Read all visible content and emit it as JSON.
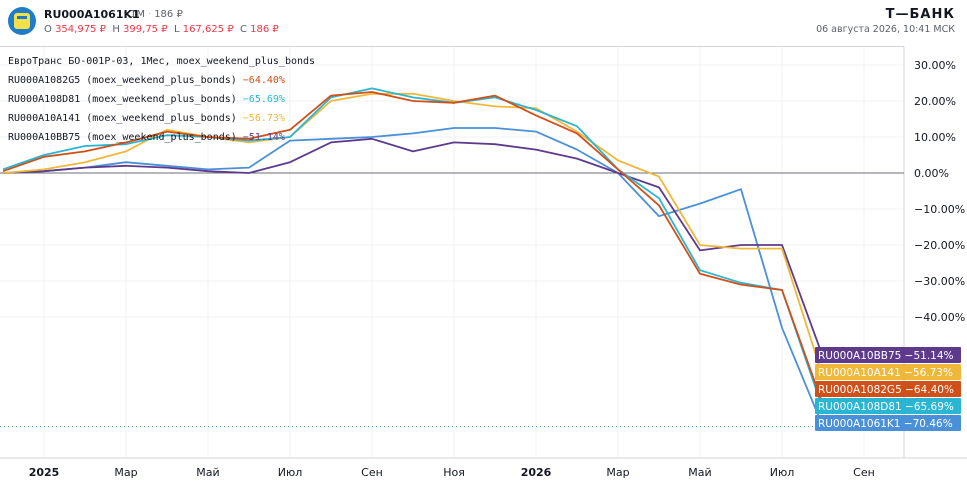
{
  "header": {
    "ticker": "RU000A1061K1",
    "interval": "1M",
    "count": "186 ₽",
    "ohlc": [
      {
        "key": "O",
        "value": "354,975 ₽"
      },
      {
        "key": "H",
        "value": "399,75 ₽"
      },
      {
        "key": "L",
        "value": "167,625 ₽"
      },
      {
        "key": "C",
        "value": "186 ₽"
      }
    ],
    "brand": "Т—БАНК",
    "datetime": "06 августа 2026, 10:41 МСК"
  },
  "legend": {
    "title": "ЕвроТранс БО-001Р-03, 1Мес, moex_weekend_plus_bonds"
  },
  "colors": {
    "RU000A1082G5": "#d0501a",
    "RU000A108D81": "#2ab5d3",
    "RU000A10A141": "#f0b83a",
    "RU000A10BB75": "#5e3a8c",
    "RU000A1061K1": "#4a90d9",
    "grid": "#eef0f3",
    "axis_text": "#131722",
    "zero_line": "#6b6f79"
  },
  "chart_data": {
    "type": "line",
    "x": [
      "2024-12",
      "2025-01",
      "2025-02",
      "2025-03",
      "2025-04",
      "2025-05",
      "2025-06",
      "2025-07",
      "2025-08",
      "2025-09",
      "2025-10",
      "2025-11",
      "2025-12",
      "2026-01",
      "2026-02",
      "2026-03",
      "2026-04",
      "2026-05",
      "2026-06",
      "2026-07",
      "2026-08"
    ],
    "xticks": [
      {
        "x": "2025-01",
        "label": "2025"
      },
      {
        "x": "2025-03",
        "label": "Мар"
      },
      {
        "x": "2025-05",
        "label": "Май"
      },
      {
        "x": "2025-07",
        "label": "Июл"
      },
      {
        "x": "2025-09",
        "label": "Сен"
      },
      {
        "x": "2025-11",
        "label": "Ноя"
      },
      {
        "x": "2026-01",
        "label": "2026"
      },
      {
        "x": "2026-03",
        "label": "Мар"
      },
      {
        "x": "2026-05",
        "label": "Май"
      },
      {
        "x": "2026-07",
        "label": "Июл"
      },
      {
        "x": "2026-09",
        "label": "Сен"
      }
    ],
    "yticks": [
      30,
      20,
      10,
      0,
      -10,
      -20,
      -30,
      -40
    ],
    "ytick_labels": [
      "30.00%",
      "20.00%",
      "10.00%",
      "0.00%",
      "−10.00%",
      "−20.00%",
      "−30.00%",
      "−40.00%"
    ],
    "ylim": [
      -75,
      33
    ],
    "series": [
      {
        "name": "RU000A1082G5",
        "label": "RU000A1082G5 (moex_weekend_plus_bonds)",
        "value_label": "−64.40%",
        "badge": "RU000A1082G5 −64.40%",
        "color": "#d0501a",
        "values": [
          0.5,
          4.5,
          6,
          8.5,
          11.5,
          10,
          9.5,
          12,
          21.5,
          22.5,
          20,
          19.5,
          21.5,
          16,
          11,
          1,
          -9,
          -28,
          -31,
          -32.5,
          -64.4
        ]
      },
      {
        "name": "RU000A108D81",
        "label": "RU000A108D81 (moex_weekend_plus_bonds)",
        "value_label": "−65.69%",
        "badge": "RU000A108D81 −65.69%",
        "color": "#2ab5d3",
        "values": [
          1,
          5,
          7.5,
          8,
          10.5,
          10,
          9,
          10,
          21,
          23.5,
          21,
          19.5,
          21,
          17.5,
          13,
          1,
          -7,
          -27,
          -30.5,
          -32.5,
          -65.69
        ]
      },
      {
        "name": "RU000A10A141",
        "label": "RU000A10A141 (moex_weekend_plus_bonds)",
        "value_label": "−56.73%",
        "badge": "RU000A10A141 −56.73%",
        "color": "#f0b83a",
        "values": [
          0,
          1,
          3,
          6,
          12,
          10,
          8.5,
          10,
          20,
          22,
          22,
          20,
          18.5,
          18,
          11.5,
          3.5,
          -1,
          -20,
          -21,
          -21,
          -56.73
        ]
      },
      {
        "name": "RU000A10BB75",
        "label": "RU000A10BB75 (moex_weekend_plus_bonds)",
        "value_label": "−51.14%",
        "badge": "RU000A10BB75 −51.14%",
        "color": "#5e3a8c",
        "values": [
          0,
          0.5,
          1.5,
          2,
          1.5,
          0.5,
          0,
          3,
          8.5,
          9.5,
          6,
          8.5,
          8,
          6.5,
          4,
          0,
          -4,
          -21.5,
          -20,
          -20,
          -51.14
        ]
      },
      {
        "name": "RU000A1061K1",
        "value_label": "−70.46%",
        "badge": "RU000A1061K1 −70.46%",
        "color": "#4a90d9",
        "values": [
          0,
          0.5,
          1.5,
          3,
          2,
          1,
          1.5,
          9,
          9.5,
          10,
          11,
          12.5,
          12.5,
          11.5,
          6.5,
          0,
          -12,
          -8.5,
          -4.5,
          -43,
          -70.46
        ]
      }
    ],
    "badge_order": [
      "RU000A10BB75",
      "RU000A10A141",
      "RU000A1082G5",
      "RU000A108D81",
      "RU000A1061K1"
    ]
  }
}
